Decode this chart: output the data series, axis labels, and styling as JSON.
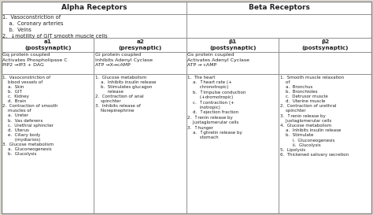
{
  "title_alpha": "Alpha Receptors",
  "title_beta": "Beta Receptors",
  "col_headers": [
    "a1\n(postsynaptic)",
    "a2\n(presynaptic)",
    "β1\n(postsynaptic)",
    "β2\n(postsynaptic)"
  ],
  "alpha_general": "1.  Vasoconstriction of\n    a.  Coronary arteries\n    b.  Veins\n2.  ↓motility of GIT smooth muscle cells",
  "receptor_row": [
    "Gq protein coupled\nActivates Phospholipase C\nPIP2 →IP3 + DAG",
    "Gi protein coupled\nInhibits Adenyl Cyclase\nATP →X→cAMP",
    "Gs protein coupled\nActivates Adenyl Cyclase\nATP → cAMP",
    ""
  ],
  "receptor_bold": [
    "Gq protein",
    "Gi protein",
    "Gs protein",
    ""
  ],
  "receptor_bold2": [
    "Phospholipase C",
    "Adenyl Cyclase",
    "Adenyl Cyclase",
    ""
  ],
  "col1_content": "1.  Vasoconstriction of\n    blood vessels of\n    a.  Skin\n    b.  GIT\n    c.  Kidney\n    d.  Brain\n2.  Contraction of smooth\n    muscles of\n    a.  Ureter\n    b.  Vas deferens\n    c.  Urethral sphincter\n    d.  Uterus\n    e.  Ciliary body\n         (mydiarisis)\n3.  Glucose metabolism\n    a.  Gluconeogenesis\n    b.  Glucolysis",
  "col2_content": "1.  Glucose metabolism\n    a.  Inhibits insulin release\n    b.  Stimulates glucagon\n         release\n2.  Contraction of anal\n    spinchter\n3.  Inhibits release of\n    Norepinephrine",
  "col3_content": "1.  The heart\n    a.  ↑heart rate (+\n         chronotropic)\n    b.  ↑Impulse conduction\n         (+dromotropic)\n    c.  ↑contraction (+\n         inotropic)\n    d.  ↑ejection fraction\n2.  ↑renin release by\n    Juxtaglomerular cells\n3.  ↑hunger\n    a.  ↑ghrelin release by\n         stomach",
  "col4_content": "1.  Smooth muscle relaxation\n    of\n    a.  Bronchus\n    b.  Bronchioles\n    c.  Detrusor muscle\n    d.  Uterine muscle\n2.  Contraction of urethral\n    spinchter\n3.  ↑renin release by\n    Juxtaglomerular cells\n4.  Glucose metabolism\n    a.  Inhibits insulin release\n    b.  Stimulate\n         i.  Gluconeogenesis\n         ii.  Glucolysis\n5.  Lipolysis\n6.  Thickened salivary secretion",
  "bg_color": "#dedad2",
  "cell_color": "#ffffff",
  "border_color": "#888888",
  "text_color": "#222222",
  "figsize": [
    4.74,
    2.73
  ],
  "dpi": 100
}
